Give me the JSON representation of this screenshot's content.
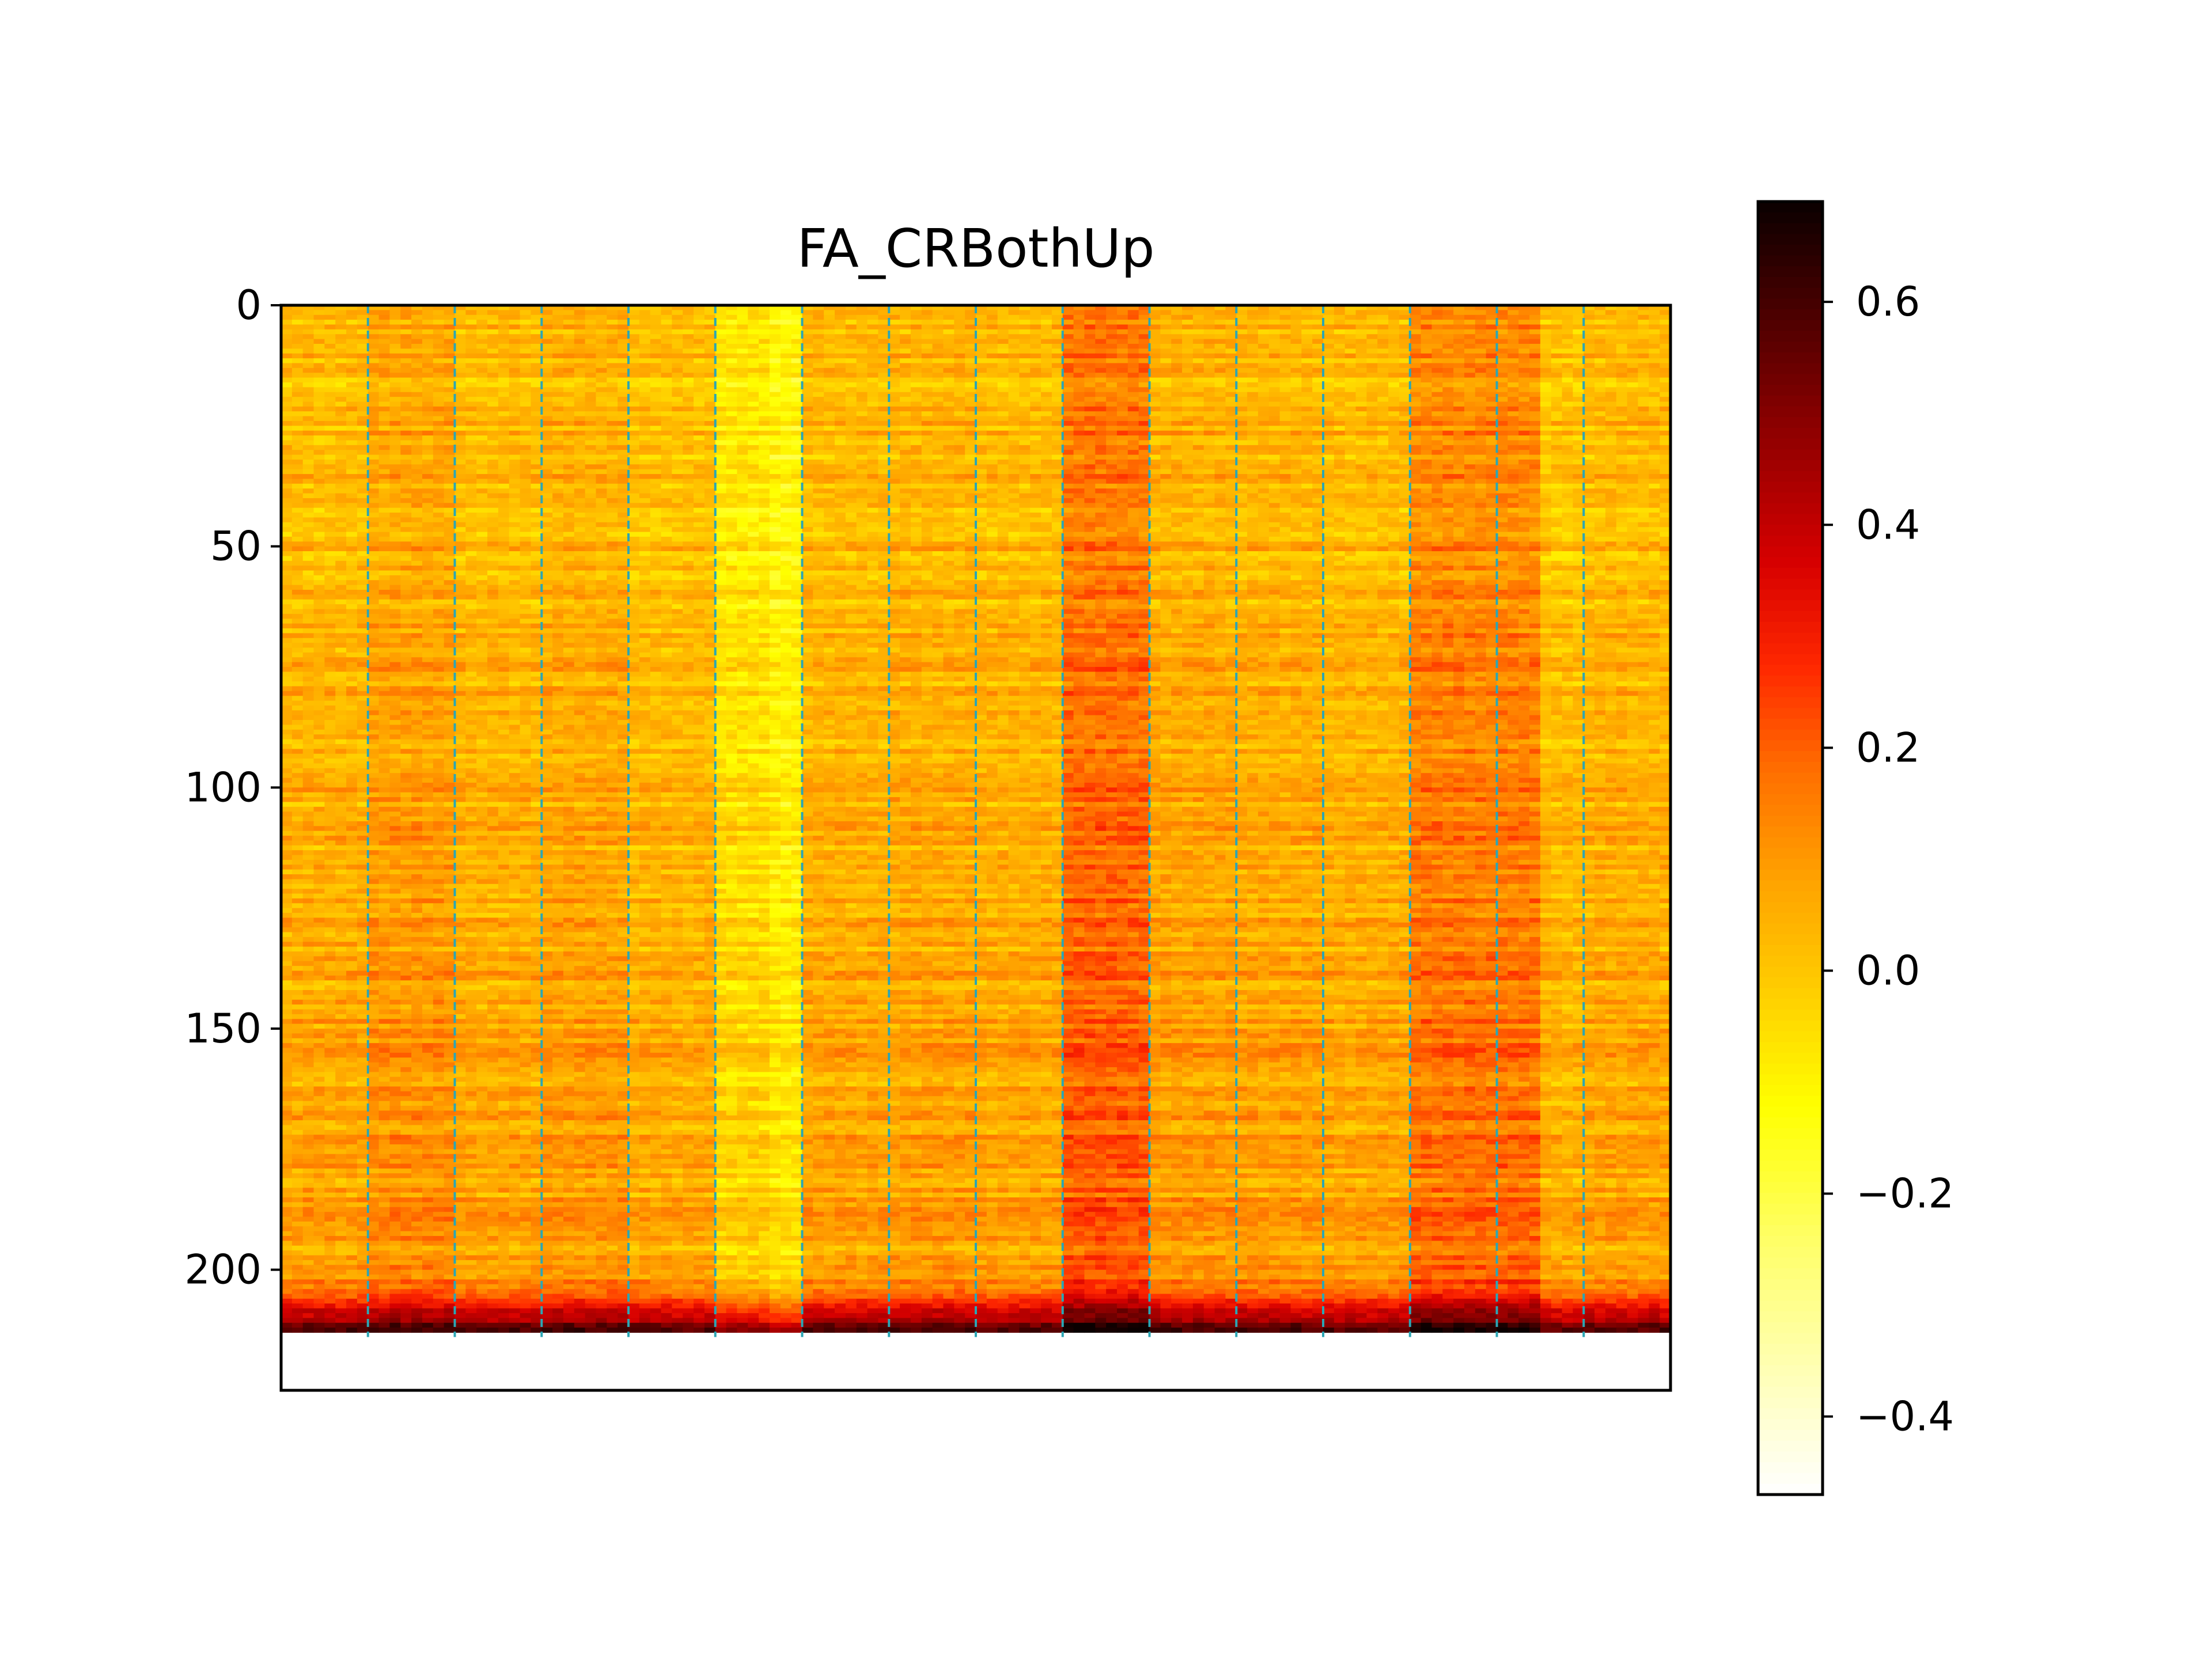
{
  "chart_data": {
    "type": "heatmap",
    "title": "FA_CRBothUp",
    "xlabel": "",
    "ylabel": "",
    "rows": 213,
    "columns": 16,
    "subcolumns_per_column": 8,
    "ylim": [
      225,
      0
    ],
    "yticks": [
      0,
      50,
      100,
      150,
      200
    ],
    "ytick_labels": [
      "0",
      "50",
      "100",
      "150",
      "200"
    ],
    "xticks_visible": false,
    "grid": {
      "vertical_dashed_lines": true,
      "line_color": "#2ca6b4",
      "positions": [
        1,
        2,
        3,
        4,
        5,
        6,
        7,
        8,
        9,
        10,
        11,
        12,
        13,
        14,
        15
      ]
    },
    "colormap": "afmhot_r",
    "colorbar": {
      "min": -0.47,
      "max": 0.69,
      "ticks": [
        -0.4,
        -0.2,
        0.0,
        0.2,
        0.4,
        0.6
      ],
      "tick_labels": [
        "−0.4",
        "−0.2",
        "0.0",
        "0.2",
        "0.4",
        "0.6"
      ]
    },
    "column_means": [
      0.02,
      0.06,
      0.02,
      0.04,
      0.01,
      -0.08,
      0.02,
      0.03,
      0.02,
      0.15,
      0.04,
      0.03,
      0.02,
      0.12,
      0.12,
      0.02
    ],
    "row_trend": "values increase toward the bottom rows; the last ~10 rows are strongly positive (dark)"
  }
}
